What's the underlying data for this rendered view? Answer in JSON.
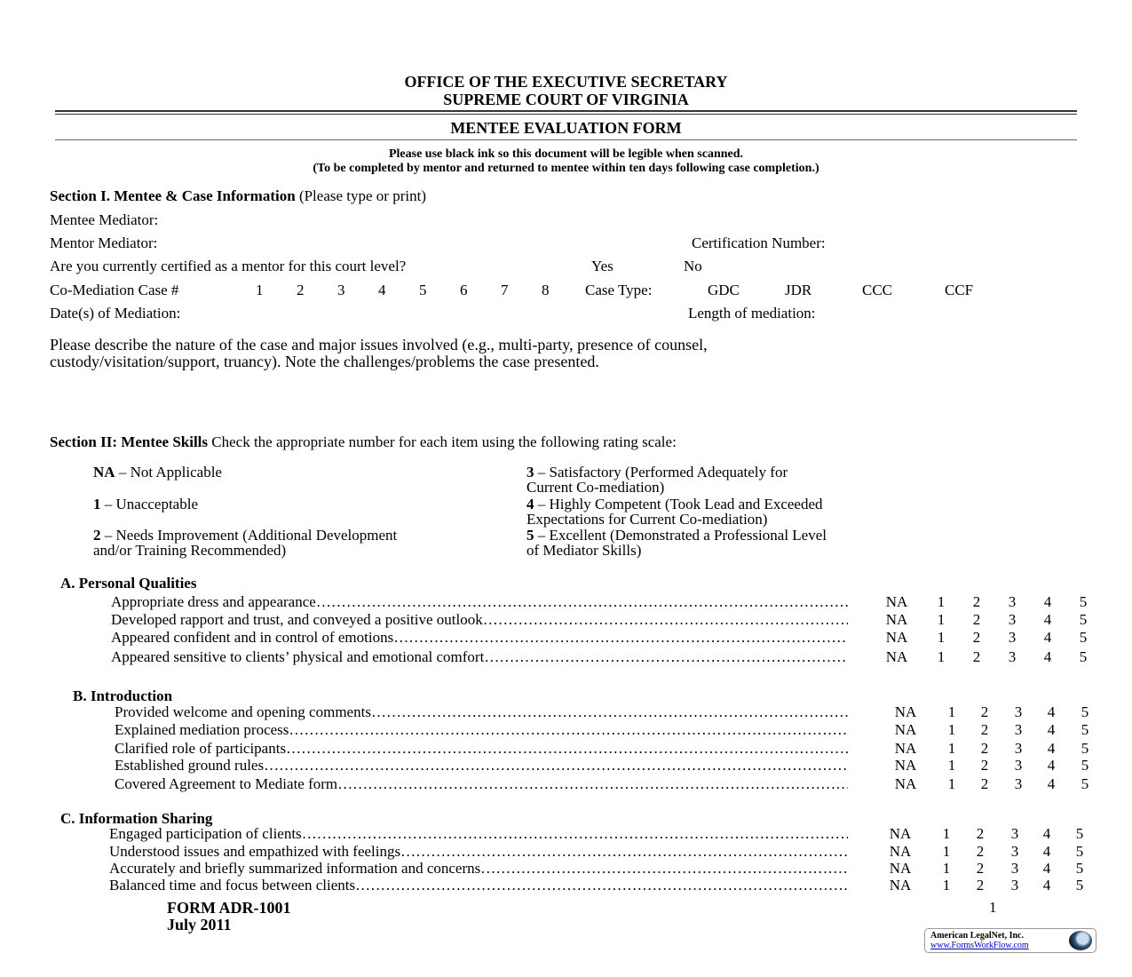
{
  "header": {
    "line1": "OFFICE OF THE EXECUTIVE SECRETARY",
    "line2": "SUPREME COURT OF VIRGINIA",
    "form_title": "MENTEE EVALUATION FORM",
    "note1": "Please use black ink so this document will be legible when scanned.",
    "note2": "(To be completed by mentor and returned to mentee within ten days following case completion.)"
  },
  "section1": {
    "title": "Section I.   Mentee & Case Information",
    "title_note": "(Please type or print)",
    "mentee_mediator": "Mentee Mediator:",
    "mentor_mediator": "Mentor Mediator:",
    "certification_number": "Certification Number:",
    "certified_question": "Are you currently certified as a mentor for this court level?",
    "yes": "Yes",
    "no": "No",
    "co_mediation_label": "Co-Mediation Case #",
    "case_numbers": [
      "1",
      "2",
      "3",
      "4",
      "5",
      "6",
      "7",
      "8"
    ],
    "case_type_label": "Case Type:",
    "case_types": [
      "GDC",
      "JDR",
      "CCC",
      "CCF"
    ],
    "dates_label": "Date(s) of Mediation:",
    "length_label": "Length of mediation:",
    "describe_line1": "Please describe the nature of the case and major issues involved (e.g., multi-party, presence of counsel,",
    "describe_line2": "custody/visitation/support, truancy).  Note the challenges/problems the case presented."
  },
  "section2": {
    "title": "Section II: Mentee Skills",
    "instruction": "Check the appropriate number for each item using the following rating scale:",
    "scale": [
      {
        "key": "NA",
        "desc": " – Not Applicable"
      },
      {
        "key": "1",
        "desc": " – Unacceptable"
      },
      {
        "key": "2",
        "desc": " – Needs Improvement (Additional Development",
        "desc2": "and/or Training Recommended)"
      },
      {
        "key": "3",
        "desc": " – Satisfactory (Performed Adequately for",
        "desc2": "Current Co-mediation)"
      },
      {
        "key": "4",
        "desc": " – Highly Competent (Took Lead and Exceeded",
        "desc2": "Expectations for Current Co-mediation)"
      },
      {
        "key": "5",
        "desc": " – Excellent (Demonstrated a Professional Level",
        "desc2": "of Mediator Skills)"
      }
    ],
    "rating_options": [
      "NA",
      "1",
      "2",
      "3",
      "4",
      "5"
    ],
    "groups": [
      {
        "title": "A.  Personal Qualities",
        "items": [
          "Appropriate dress and appearance",
          "Developed rapport and trust, and conveyed a positive outlook",
          "Appeared confident and in control of emotions",
          "Appeared sensitive to clients’ physical and emotional comfort"
        ]
      },
      {
        "title": "B.  Introduction",
        "items": [
          "Provided welcome and opening comments",
          "Explained mediation process",
          "Clarified role of participants",
          "Established ground rules",
          "Covered Agreement to Mediate form"
        ]
      },
      {
        "title": "C.  Information Sharing",
        "items": [
          "Engaged participation of clients",
          "Understood issues and empathized with feelings",
          "Accurately and briefly summarized information and concerns",
          "Balanced time and focus between clients"
        ]
      }
    ]
  },
  "footer": {
    "form_id": "FORM ADR-1001",
    "date": "July 2011",
    "page_number": "1",
    "logo_name": "American LegalNet, Inc.",
    "logo_url": "www.FormsWorkFlow.com"
  }
}
